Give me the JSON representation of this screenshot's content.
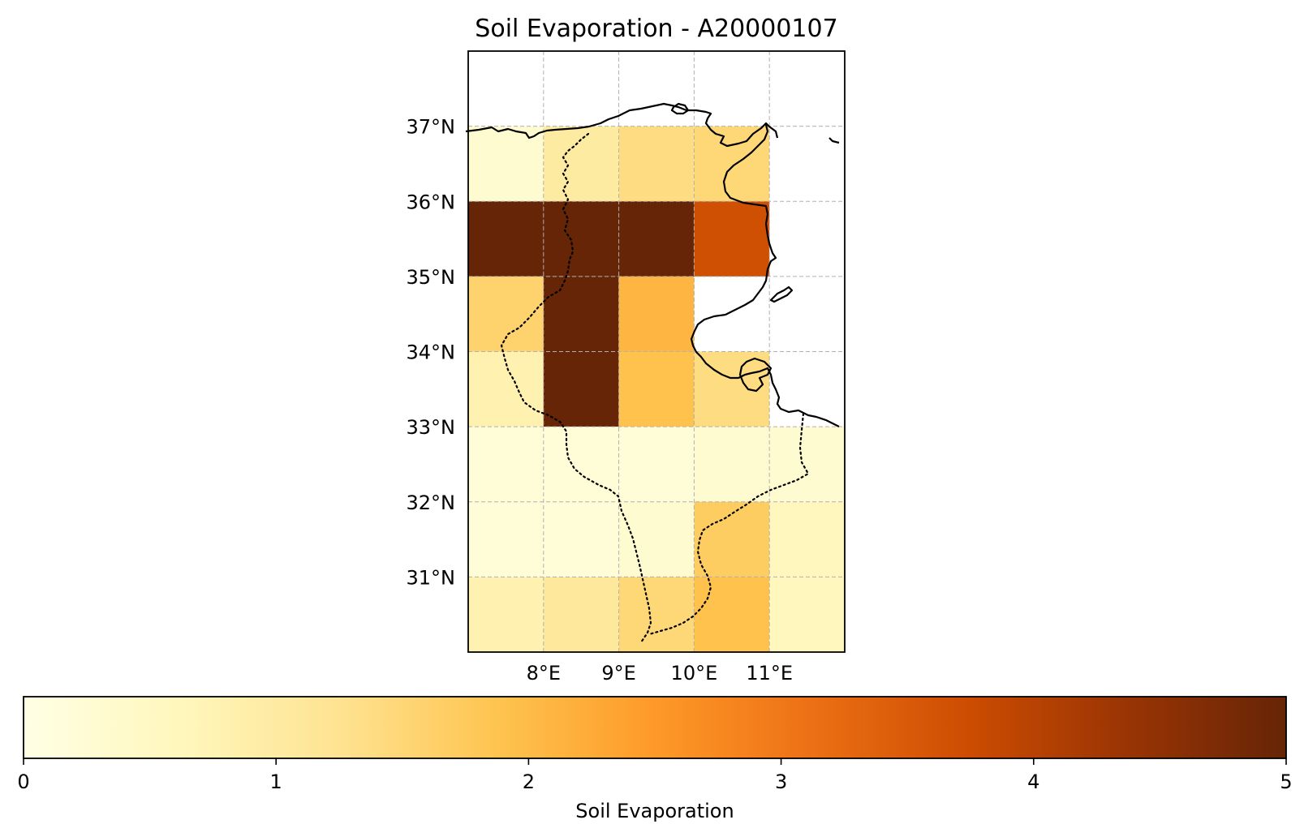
{
  "chart_data": {
    "type": "heatmap",
    "title": "Soil Evaporation - A20000107",
    "x_ticks": [
      "8°E",
      "9°E",
      "10°E",
      "11°E"
    ],
    "y_ticks": [
      "37°N",
      "36°N",
      "35°N",
      "34°N",
      "33°N",
      "32°N",
      "31°N"
    ],
    "x_tick_values": [
      8,
      9,
      10,
      11
    ],
    "y_tick_values": [
      37,
      36,
      35,
      34,
      33,
      32,
      31
    ],
    "xlim": [
      7,
      12
    ],
    "ylim": [
      30,
      38
    ],
    "grid": true,
    "cell_lon_edges": [
      7,
      8,
      9,
      10,
      11,
      12
    ],
    "cell_lat_edges": [
      37,
      36,
      35,
      34,
      33,
      32,
      31,
      30
    ],
    "values": [
      [
        0.3,
        1.0,
        1.4,
        1.5,
        null
      ],
      [
        5.0,
        5.0,
        5.0,
        3.7,
        null
      ],
      [
        1.6,
        5.0,
        2.1,
        null,
        null
      ],
      [
        0.8,
        5.0,
        1.9,
        1.4,
        null
      ],
      [
        0.2,
        0.2,
        0.2,
        0.3,
        0.3
      ],
      [
        0.2,
        0.2,
        0.3,
        1.7,
        0.6
      ],
      [
        0.8,
        1.1,
        1.5,
        1.9,
        0.6
      ]
    ],
    "colorbar": {
      "label": "Soil Evaporation",
      "ticks": [
        "0",
        "1",
        "2",
        "3",
        "4",
        "5"
      ],
      "tick_values": [
        0,
        1,
        2,
        3,
        4,
        5
      ],
      "range": [
        0,
        5
      ],
      "colormap": "YlOrBr"
    }
  }
}
